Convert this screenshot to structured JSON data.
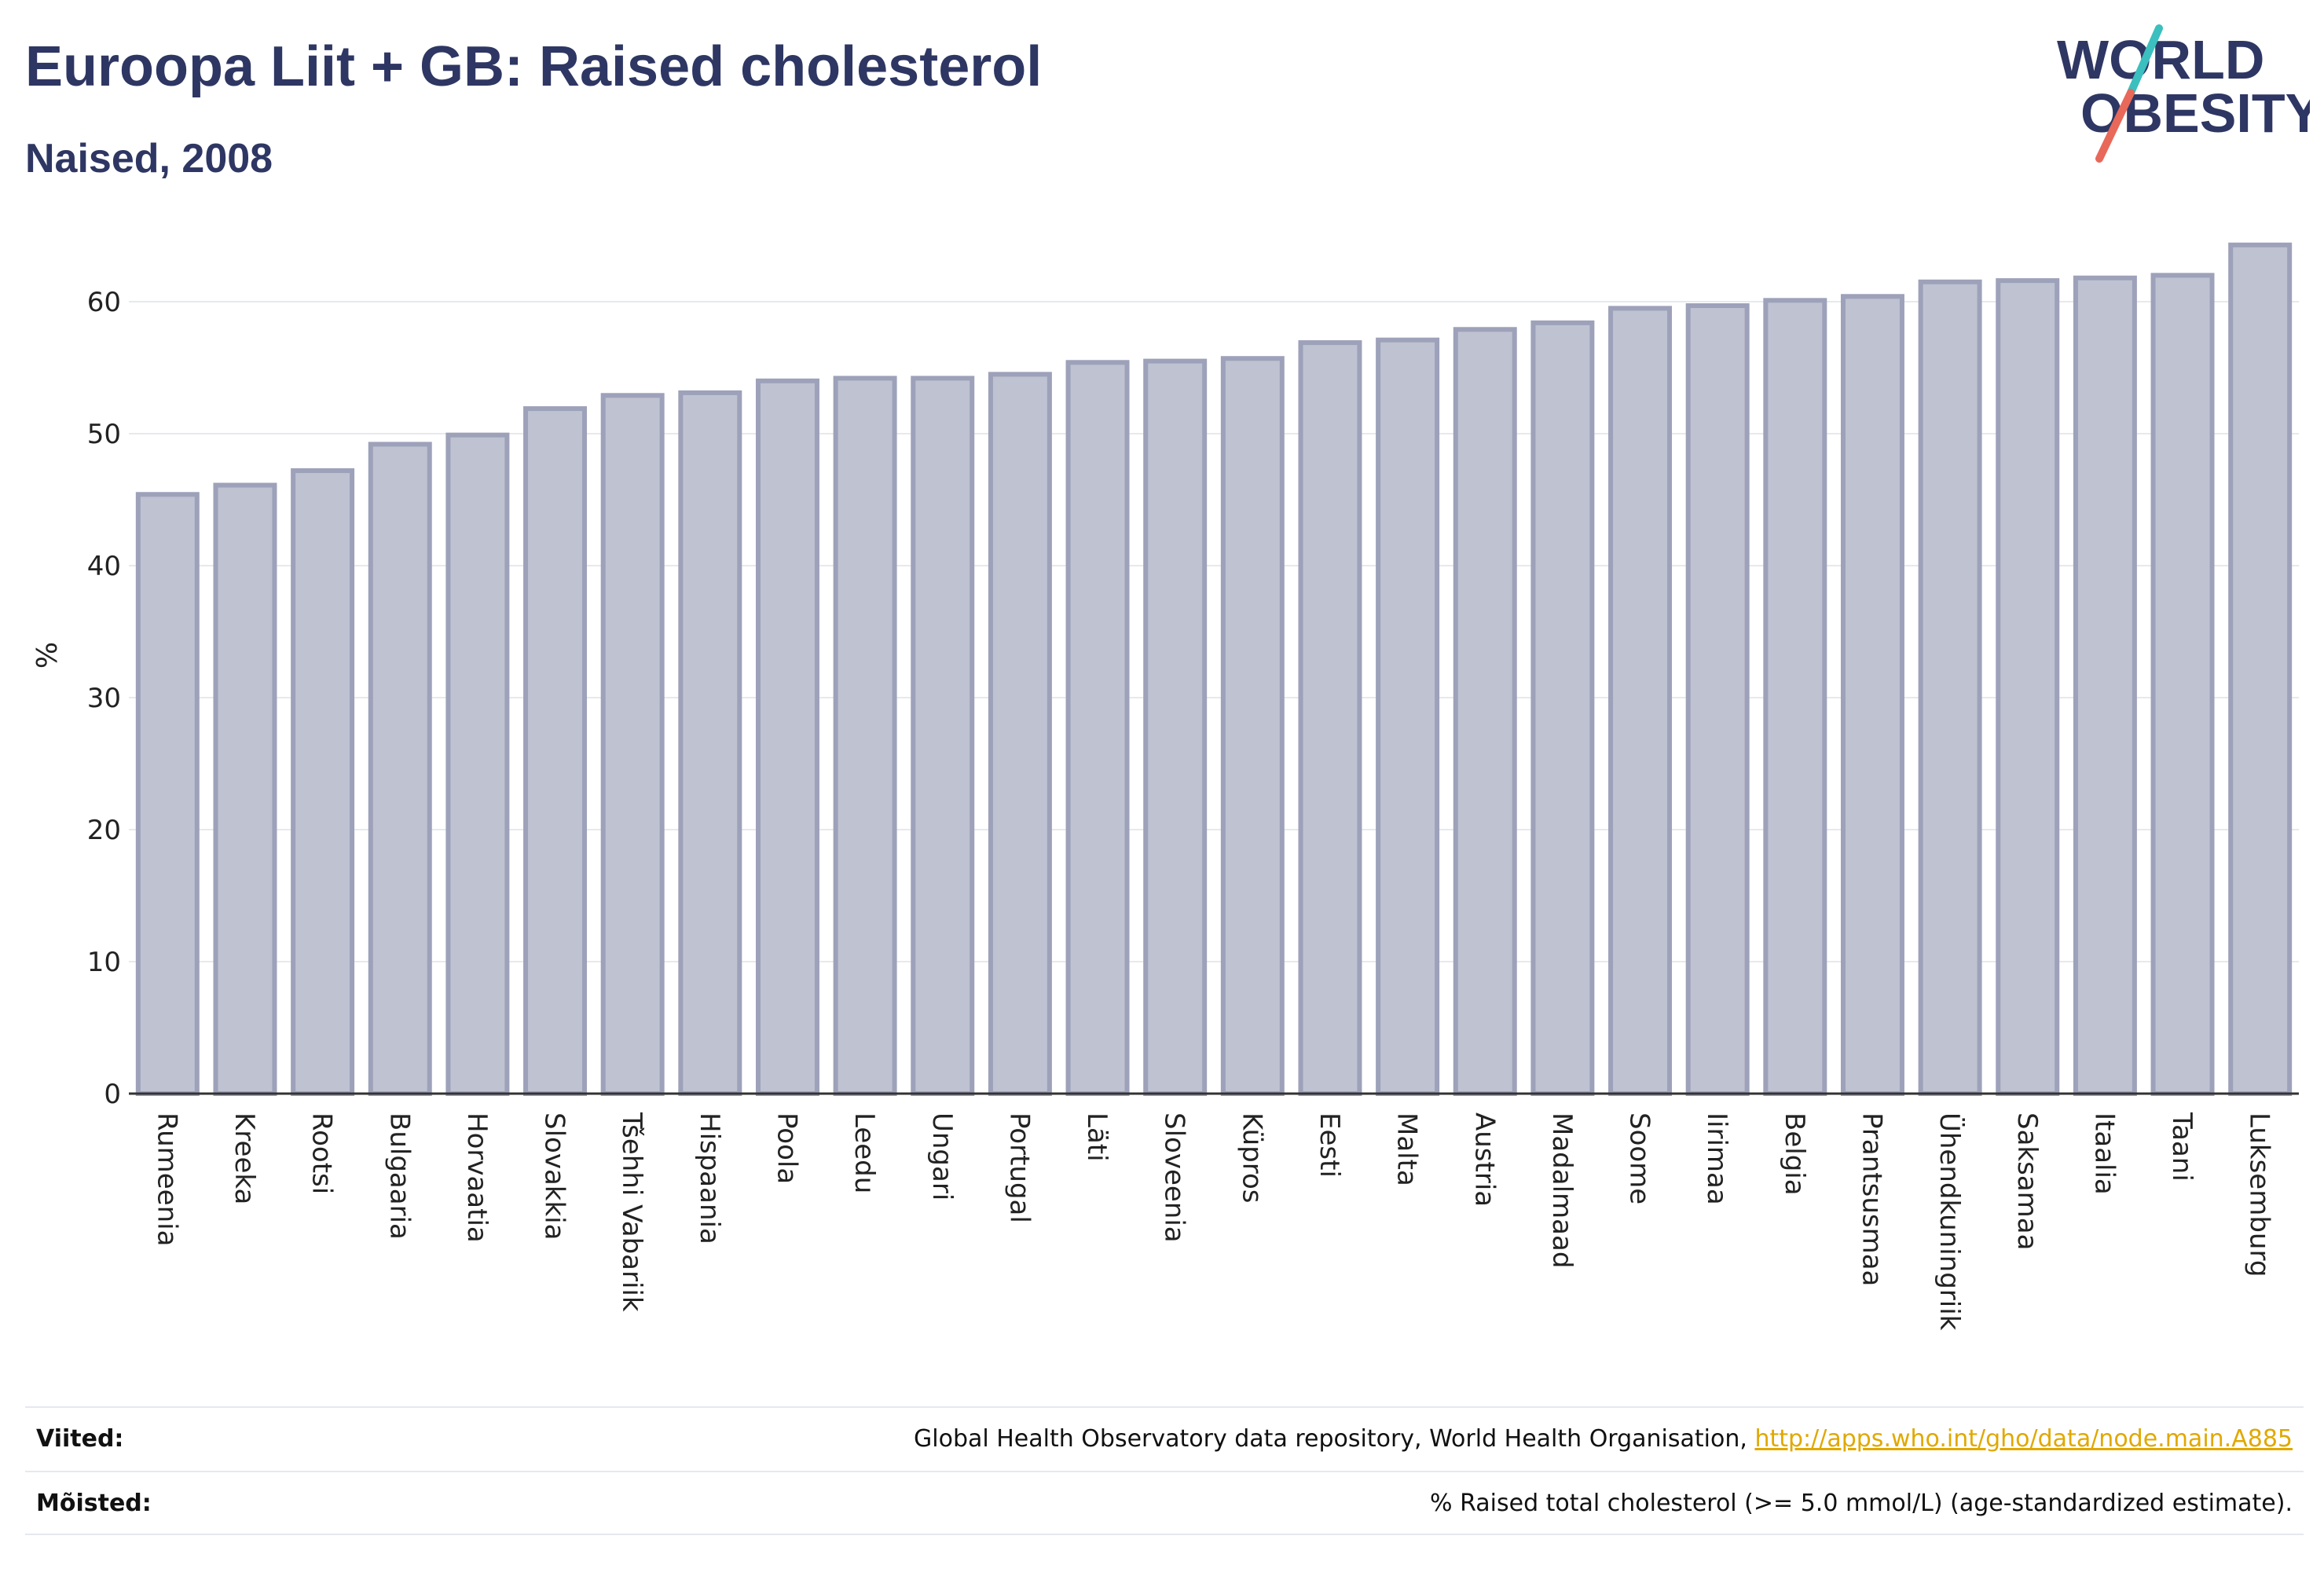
{
  "header": {
    "title": "Euroopa Liit + GB: Raised cholesterol",
    "subtitle": "Naised, 2008"
  },
  "logo": {
    "line1": "WORLD",
    "line2": "OBESITY",
    "text_color": "#2e3663",
    "accent_teal": "#3bbfbf",
    "accent_red": "#e8685a"
  },
  "colors": {
    "bar_fill": "#bfc2d1",
    "bar_stroke": "#9da1b9",
    "grid": "#e8e9ef",
    "axis": "#333333",
    "text": "#222222"
  },
  "chart_data": {
    "type": "bar",
    "ylabel": "%",
    "ylim": [
      0,
      65
    ],
    "yticks": [
      0,
      10,
      20,
      30,
      40,
      50,
      60
    ],
    "grid": true,
    "categories": [
      "Rumeenia",
      "Kreeka",
      "Rootsi",
      "Bulgaaria",
      "Horvaatia",
      "Slovakkia",
      "Tšehhi Vabariik",
      "Hispaania",
      "Poola",
      "Leedu",
      "Ungari",
      "Portugal",
      "Läti",
      "Sloveenia",
      "Küpros",
      "Eesti",
      "Malta",
      "Austria",
      "Madalmaad",
      "Soome",
      "Iirimaa",
      "Belgia",
      "Prantsusmaa",
      "Ühendkuningriik",
      "Saksamaa",
      "Itaalia",
      "Taani",
      "Luksemburg"
    ],
    "values": [
      45.4,
      46.1,
      47.2,
      49.2,
      49.9,
      51.9,
      52.9,
      53.1,
      54.0,
      54.2,
      54.2,
      54.5,
      55.4,
      55.5,
      55.7,
      56.9,
      57.1,
      57.9,
      58.4,
      59.5,
      59.7,
      60.1,
      60.4,
      61.5,
      61.6,
      61.8,
      62.0,
      64.3
    ]
  },
  "footer": {
    "sources_label": "Viited:",
    "sources_text": "Global Health Observatory data repository, World Health Organisation, ",
    "sources_link": "http://apps.who.int/gho/data/node.main.A885",
    "definitions_label": "Mõisted:",
    "definitions_text": "% Raised total cholesterol (>= 5.0 mmol/L) (age-standardized estimate)."
  }
}
